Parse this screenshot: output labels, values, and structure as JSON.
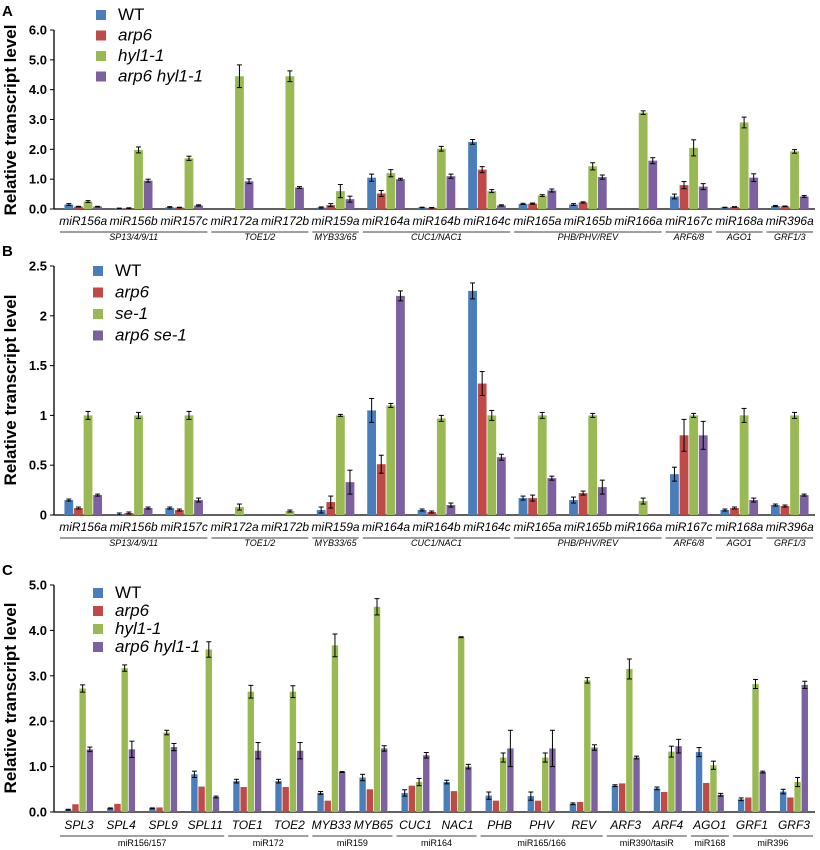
{
  "colors": {
    "WT": "#4a7ebb",
    "arp6": "#be4b48",
    "mutant": "#98b954",
    "double": "#7d60a0"
  },
  "chart_data": [
    {
      "type": "bar",
      "panel": "A",
      "ylabel": "Relative transcript level",
      "ylim": [
        0,
        6.0
      ],
      "yticks": [
        "0.0",
        "1.0",
        "2.0",
        "3.0",
        "4.0",
        "5.0",
        "6.0"
      ],
      "legend": [
        "WT",
        "arp6",
        "hyl1-1",
        "arp6 hyl1-1"
      ],
      "categories": [
        "miR156a",
        "miR156b",
        "miR157c",
        "miR172a",
        "miR172b",
        "miR159a",
        "miR164a",
        "miR164b",
        "miR164c",
        "miR165a",
        "miR165b",
        "miR166a",
        "miR167c",
        "miR168a",
        "miR396a"
      ],
      "groups": [
        {
          "label": "SP13/4/9/11",
          "from": 0,
          "to": 2
        },
        {
          "label": "TOE1/2",
          "from": 3,
          "to": 4
        },
        {
          "label": "MYB33/65",
          "from": 5,
          "to": 5
        },
        {
          "label": "CUC1/NAC1",
          "from": 6,
          "to": 8
        },
        {
          "label": "PHB/PHV/REV",
          "from": 9,
          "to": 11
        },
        {
          "label": "ARF6/8",
          "from": 12,
          "to": 12
        },
        {
          "label": "AGO1",
          "from": 13,
          "to": 13
        },
        {
          "label": "GRF1/3",
          "from": 14,
          "to": 14
        }
      ],
      "series": [
        {
          "name": "WT",
          "values": [
            0.15,
            0.02,
            0.06,
            0,
            0,
            0.05,
            1.05,
            0.05,
            2.25,
            0.17,
            0.15,
            0,
            0.42,
            0.05,
            0.1
          ],
          "errors": [
            0.03,
            0.01,
            0.02,
            0,
            0,
            0.02,
            0.12,
            0.01,
            0.08,
            0.02,
            0.03,
            0,
            0.08,
            0.01,
            0.02
          ]
        },
        {
          "name": "arp6",
          "values": [
            0.08,
            0.03,
            0.05,
            0,
            0,
            0.13,
            0.52,
            0.04,
            1.32,
            0.18,
            0.22,
            0,
            0.8,
            0.07,
            0.09
          ],
          "errors": [
            0.01,
            0.01,
            0.01,
            0,
            0,
            0.05,
            0.1,
            0.01,
            0.1,
            0.02,
            0.02,
            0,
            0.12,
            0.01,
            0.01
          ]
        },
        {
          "name": "hyl1-1",
          "values": [
            0.25,
            1.98,
            1.7,
            4.45,
            4.45,
            0.6,
            1.2,
            2.02,
            0.6,
            0.45,
            1.43,
            3.23,
            2.05,
            2.9,
            1.93
          ],
          "errors": [
            0.03,
            0.1,
            0.07,
            0.38,
            0.18,
            0.22,
            0.12,
            0.08,
            0.05,
            0.03,
            0.12,
            0.06,
            0.27,
            0.18,
            0.06
          ]
        },
        {
          "name": "arp6 hyl1-1",
          "values": [
            0.08,
            0.95,
            0.12,
            0.93,
            0.72,
            0.33,
            1.0,
            1.1,
            0.12,
            0.62,
            1.07,
            1.62,
            0.75,
            1.05,
            0.42
          ],
          "errors": [
            0.01,
            0.05,
            0.02,
            0.08,
            0.03,
            0.1,
            0.03,
            0.07,
            0.02,
            0.05,
            0.07,
            0.1,
            0.1,
            0.13,
            0.03
          ]
        }
      ]
    },
    {
      "type": "bar",
      "panel": "B",
      "ylabel": "Relative transcript level",
      "ylim": [
        0,
        2.5
      ],
      "yticks": [
        "0",
        "0.5",
        "1",
        "1.5",
        "2",
        "2.5"
      ],
      "legend": [
        "WT",
        "arp6",
        "se-1",
        "arp6 se-1"
      ],
      "categories": [
        "miR156a",
        "miR156b",
        "miR157c",
        "miR172a",
        "miR172b",
        "miR159a",
        "miR164a",
        "miR164b",
        "miR164c",
        "miR165a",
        "miR165b",
        "miR166a",
        "miR167c",
        "miR168a",
        "miR396a"
      ],
      "groups": [
        {
          "label": "SP13/4/9/11",
          "from": 0,
          "to": 2
        },
        {
          "label": "TOE1/2",
          "from": 3,
          "to": 4
        },
        {
          "label": "MYB33/65",
          "from": 5,
          "to": 5
        },
        {
          "label": "CUC1/NAC1",
          "from": 6,
          "to": 8
        },
        {
          "label": "PHB/PHV/REV",
          "from": 9,
          "to": 11
        },
        {
          "label": "ARF6/8",
          "from": 12,
          "to": 12
        },
        {
          "label": "AGO1",
          "from": 13,
          "to": 13
        },
        {
          "label": "GRF1/3",
          "from": 14,
          "to": 14
        }
      ],
      "series": [
        {
          "name": "WT",
          "values": [
            0.15,
            0.01,
            0.07,
            0,
            0,
            0.05,
            1.05,
            0.05,
            2.25,
            0.17,
            0.15,
            0,
            0.41,
            0.05,
            0.1
          ],
          "errors": [
            0.01,
            0.01,
            0.01,
            0,
            0,
            0.03,
            0.12,
            0.01,
            0.08,
            0.02,
            0.03,
            0,
            0.07,
            0.01,
            0.01
          ]
        },
        {
          "name": "arp6",
          "values": [
            0.07,
            0.02,
            0.05,
            0,
            0,
            0.13,
            0.51,
            0.03,
            1.32,
            0.17,
            0.22,
            0,
            0.8,
            0.07,
            0.09
          ],
          "errors": [
            0.01,
            0.01,
            0.01,
            0,
            0,
            0.06,
            0.09,
            0.01,
            0.12,
            0.03,
            0.02,
            0,
            0.16,
            0.01,
            0.01
          ]
        },
        {
          "name": "se-1",
          "values": [
            1.0,
            1.0,
            1.0,
            0.08,
            0.04,
            1.0,
            1.1,
            0.97,
            1.0,
            1.0,
            1.0,
            0.14,
            1.0,
            1.0,
            1.0
          ],
          "errors": [
            0.04,
            0.03,
            0.04,
            0.03,
            0.01,
            0.01,
            0.02,
            0.03,
            0.05,
            0.03,
            0.02,
            0.03,
            0.02,
            0.07,
            0.03
          ]
        },
        {
          "name": "arp6 se-1",
          "values": [
            0.2,
            0.07,
            0.15,
            0,
            0,
            0.33,
            2.2,
            0.1,
            0.58,
            0.37,
            0.28,
            0,
            0.8,
            0.15,
            0.2
          ],
          "errors": [
            0.01,
            0.01,
            0.02,
            0,
            0,
            0.12,
            0.05,
            0.02,
            0.03,
            0.02,
            0.07,
            0,
            0.14,
            0.02,
            0.01
          ]
        }
      ]
    },
    {
      "type": "bar",
      "panel": "C",
      "ylabel": "Relative transcript level",
      "ylim": [
        0,
        5.0
      ],
      "yticks": [
        "0.0",
        "1.0",
        "2.0",
        "3.0",
        "4.0",
        "5.0"
      ],
      "legend": [
        "WT",
        "arp6",
        "hyl1-1",
        "arp6 hyl1-1"
      ],
      "categories": [
        "SPL3",
        "SPL4",
        "SPL9",
        "SPL11",
        "TOE1",
        "TOE2",
        "MYB33",
        "MYB65",
        "CUC1",
        "NAC1",
        "PHB",
        "PHV",
        "REV",
        "ARF3",
        "ARF4",
        "AGO1",
        "GRF1",
        "GRF3"
      ],
      "groups": [
        {
          "label": "miR156/157",
          "from": 0,
          "to": 3
        },
        {
          "label": "miR172",
          "from": 4,
          "to": 5
        },
        {
          "label": "miR159",
          "from": 6,
          "to": 7
        },
        {
          "label": "miR164",
          "from": 8,
          "to": 9
        },
        {
          "label": "miR165/166",
          "from": 10,
          "to": 12
        },
        {
          "label": "miR390/tasiR",
          "from": 13,
          "to": 14
        },
        {
          "label": "miR168",
          "from": 15,
          "to": 15
        },
        {
          "label": "miR396",
          "from": 16,
          "to": 17
        }
      ],
      "series": [
        {
          "name": "WT",
          "values": [
            0.05,
            0.08,
            0.08,
            0.83,
            0.68,
            0.68,
            0.42,
            0.76,
            0.42,
            0.66,
            0.36,
            0.35,
            0.18,
            0.58,
            0.52,
            1.32,
            0.28,
            0.45
          ],
          "errors": [
            0.01,
            0.01,
            0.01,
            0.07,
            0.04,
            0.04,
            0.03,
            0.07,
            0.07,
            0.04,
            0.08,
            0.09,
            0.02,
            0.02,
            0.03,
            0.1,
            0.03,
            0.05
          ]
        },
        {
          "name": "arp6",
          "values": [
            0.17,
            0.18,
            0.1,
            0.56,
            0.55,
            0.55,
            0.25,
            0.5,
            0.58,
            0.46,
            0.25,
            0.25,
            0.22,
            0.63,
            0.44,
            0.64,
            0.32,
            0.32
          ]
        },
        {
          "name": "hyl1-1",
          "values": [
            2.72,
            3.17,
            1.75,
            3.58,
            2.65,
            2.65,
            3.67,
            4.52,
            0.66,
            3.85,
            1.2,
            1.2,
            2.9,
            3.15,
            1.33,
            1.03,
            2.82,
            0.66
          ],
          "errors": [
            0.08,
            0.07,
            0.05,
            0.17,
            0.14,
            0.13,
            0.25,
            0.18,
            0.08,
            0.01,
            0.1,
            0.1,
            0.06,
            0.22,
            0.12,
            0.09,
            0.1,
            0.1
          ]
        },
        {
          "name": "arp6 hyl1-1",
          "values": [
            1.38,
            1.38,
            1.43,
            0.33,
            1.35,
            1.35,
            0.88,
            1.4,
            1.25,
            1.0,
            1.4,
            1.4,
            1.42,
            1.2,
            1.45,
            0.38,
            0.88,
            2.8
          ],
          "errors": [
            0.05,
            0.18,
            0.08,
            0.02,
            0.18,
            0.18,
            0.01,
            0.06,
            0.06,
            0.05,
            0.4,
            0.4,
            0.06,
            0.03,
            0.15,
            0.03,
            0.02,
            0.08
          ]
        }
      ]
    }
  ]
}
